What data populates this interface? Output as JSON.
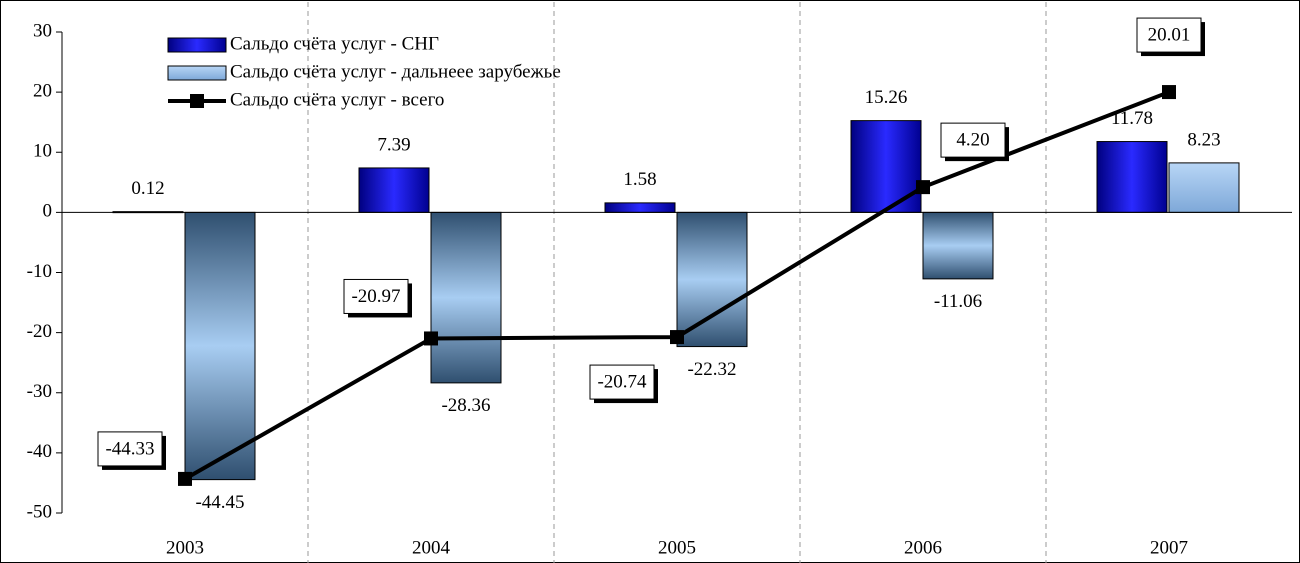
{
  "chart_data": {
    "type": "bar",
    "categories": [
      "2003",
      "2004",
      "2005",
      "2006",
      "2007"
    ],
    "series": [
      {
        "name": "Сальдо счёта услуг - СНГ",
        "color": "#1010c0",
        "values": [
          0.12,
          7.39,
          1.58,
          15.26,
          11.78
        ]
      },
      {
        "name": "Сальдо счёта услуг - дальнеее зарубежье",
        "color": "#9cc3ee",
        "values": [
          -44.45,
          -28.36,
          -22.32,
          -11.06,
          8.23
        ]
      },
      {
        "name": "Сальдо счёта услуг - всего",
        "type": "line",
        "color": "#000000",
        "values": [
          -44.33,
          -20.97,
          -20.74,
          4.2,
          20.01
        ],
        "value_labels": [
          "-44.33",
          "-20.97",
          "-20.74",
          "4.20",
          "20.01"
        ]
      }
    ],
    "ylim": [
      -50,
      30
    ],
    "yticks": [
      -50,
      -40,
      -30,
      -20,
      -10,
      0,
      10,
      20,
      30
    ]
  }
}
